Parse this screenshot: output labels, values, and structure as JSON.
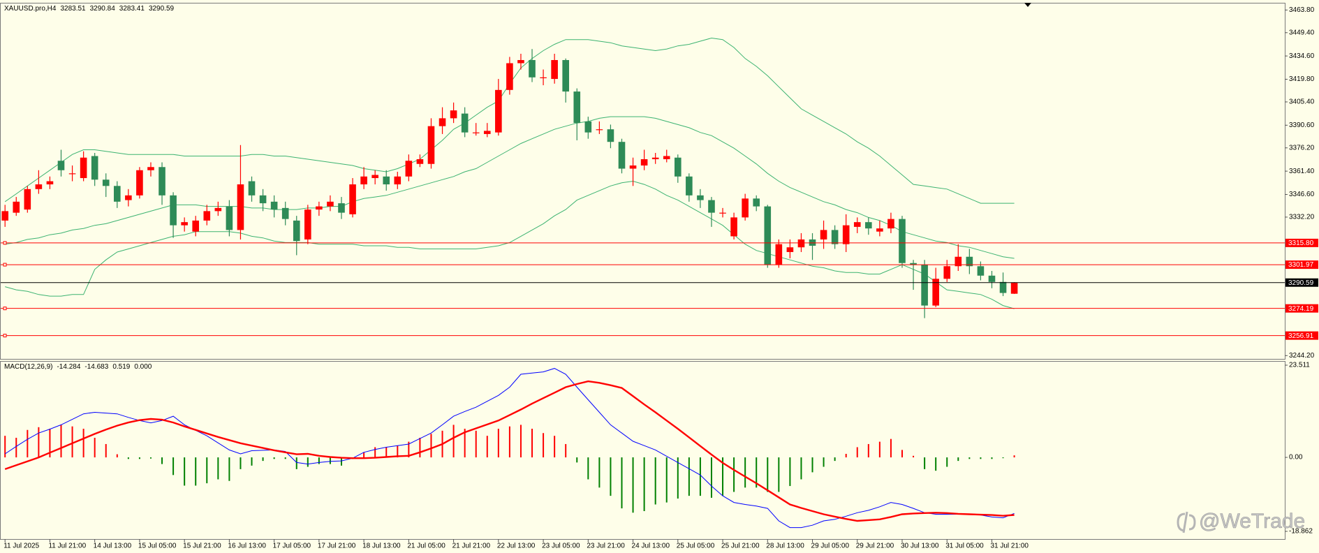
{
  "chart_data": [
    {
      "type": "candlestick",
      "title": "XAUUSD.pro,H4",
      "categories": [
        "11 Jul 2025",
        null,
        null,
        null,
        "11 Jul 21:00",
        null,
        null,
        null,
        "14 Jul 13:00",
        null,
        null,
        null,
        "15 Jul 05:00",
        null,
        null,
        null,
        "15 Jul 21:00",
        null,
        null,
        null,
        "16 Jul 13:00",
        null,
        null,
        null,
        "17 Jul 05:00",
        null,
        null,
        null,
        "17 Jul 21:00",
        null,
        null,
        null,
        "18 Jul 13:00",
        null,
        null,
        null,
        "21 Jul 05:00",
        null,
        null,
        null,
        "21 Jul 21:00",
        null,
        null,
        null,
        "22 Jul 13:00",
        null,
        null,
        null,
        "23 Jul 05:00",
        null,
        null,
        null,
        "23 Jul 21:00",
        null,
        null,
        null,
        "24 Jul 13:00",
        null,
        null,
        null,
        "25 Jul 05:00",
        null,
        null,
        null,
        "25 Jul 21:00",
        null,
        null,
        null,
        "28 Jul 13:00",
        null,
        null,
        null,
        "29 Jul 05:00",
        null,
        null,
        null,
        "29 Jul 21:00",
        null,
        null,
        null,
        "30 Jul 13:00",
        null,
        null,
        null,
        "31 Jul 05:00",
        null,
        null,
        null,
        "31 Jul 21:00",
        null,
        null
      ],
      "open": [
        3330,
        3335,
        3337,
        3350,
        3353,
        3368,
        3360,
        3357,
        3371,
        3356,
        3352,
        3343,
        3346,
        3362,
        3364,
        3346,
        3327,
        3323,
        3330,
        3336,
        3339,
        3324,
        3355,
        3346,
        3342,
        3338,
        3330,
        3318,
        3337,
        3339,
        3341,
        3334,
        3353,
        3357,
        3358,
        3353,
        3358,
        3366,
        3366,
        3390,
        3395,
        3398,
        3386,
        3385,
        3386,
        3413,
        3430,
        3432,
        3421,
        3420,
        3432,
        3412,
        3393,
        3388,
        3388,
        3380,
        3363,
        3365,
        3369,
        3369,
        3370,
        3358,
        3346,
        3343,
        3335,
        3320,
        3332,
        3344,
        3339,
        3302,
        3310,
        3313,
        3318,
        3318,
        3324,
        3315,
        3326,
        3329,
        3323,
        3325,
        3331,
        3303,
        3302,
        3276,
        3293,
        3301,
        3307,
        3301,
        3295,
        3291,
        3283.51
      ],
      "high": [
        3340,
        3345,
        3352,
        3362,
        3358,
        3375,
        3365,
        3374,
        3373,
        3360,
        3355,
        3350,
        3364,
        3367,
        3367,
        3348,
        3332,
        3333,
        3340,
        3342,
        3343,
        3378,
        3358,
        3350,
        3346,
        3342,
        3333,
        3340,
        3342,
        3346,
        3345,
        3357,
        3364,
        3362,
        3362,
        3361,
        3372,
        3372,
        3395,
        3402,
        3405,
        3402,
        3392,
        3392,
        3420,
        3434,
        3436,
        3439,
        3426,
        3436,
        3433,
        3414,
        3396,
        3393,
        3391,
        3382,
        3370,
        3375,
        3373,
        3375,
        3372,
        3360,
        3350,
        3345,
        3338,
        3335,
        3347,
        3346,
        3340,
        3318,
        3318,
        3322,
        3322,
        3330,
        3327,
        3334,
        3332,
        3332,
        3330,
        3335,
        3333,
        3305,
        3305,
        3300,
        3305,
        3315,
        3312,
        3304,
        3298,
        3297,
        3290.84
      ],
      "low": [
        3326,
        3333,
        3335,
        3347,
        3350,
        3358,
        3355,
        3355,
        3352,
        3345,
        3338,
        3339,
        3344,
        3358,
        3340,
        3319,
        3323,
        3320,
        3327,
        3333,
        3320,
        3318,
        3342,
        3336,
        3332,
        3327,
        3308,
        3315,
        3333,
        3336,
        3331,
        3332,
        3350,
        3353,
        3349,
        3350,
        3355,
        3364,
        3363,
        3385,
        3392,
        3383,
        3384,
        3383,
        3384,
        3410,
        3426,
        3418,
        3416,
        3417,
        3405,
        3381,
        3382,
        3385,
        3376,
        3360,
        3352,
        3362,
        3366,
        3367,
        3354,
        3342,
        3338,
        3326,
        3332,
        3318,
        3330,
        3336,
        3300,
        3300,
        3306,
        3310,
        3305,
        3312,
        3312,
        3310,
        3322,
        3321,
        3320,
        3322,
        3300,
        3286,
        3268,
        3275,
        3291,
        3298,
        3296,
        3292,
        3287,
        3282,
        3283.41
      ],
      "close": [
        3336,
        3342,
        3350,
        3353,
        3355,
        3362,
        3360,
        3370,
        3356,
        3352,
        3342,
        3346,
        3362,
        3364,
        3346,
        3327,
        3329,
        3330,
        3336,
        3338,
        3324,
        3353,
        3346,
        3341,
        3337,
        3331,
        3317,
        3337,
        3339,
        3342,
        3335,
        3353,
        3358,
        3359,
        3353,
        3358,
        3368,
        3369,
        3390,
        3395,
        3400,
        3386,
        3386,
        3387,
        3413,
        3430,
        3432,
        3421,
        3421,
        3432,
        3412,
        3392,
        3386,
        3388,
        3380,
        3363,
        3365,
        3369,
        3370,
        3371,
        3358,
        3346,
        3343,
        3335,
        3335,
        3332,
        3344,
        3339,
        3302,
        3315,
        3313,
        3318,
        3314,
        3324,
        3315,
        3327,
        3329,
        3325,
        3325,
        3331,
        3303,
        3302,
        3276,
        3293,
        3301,
        3307,
        3301,
        3295,
        3291,
        3284,
        3290.59
      ],
      "up_color": "#ff0000",
      "down_color": "#2e8b57",
      "overlays": [
        {
          "color": "#3cb371",
          "values": [
            3342,
            3347,
            3352,
            3357,
            3362,
            3367,
            3372,
            3375,
            3375,
            3374,
            3373,
            3372,
            3372,
            3372,
            3372,
            3372,
            3371,
            3371,
            3371,
            3371,
            3371,
            3371,
            3372,
            3372,
            3371,
            3371,
            3370,
            3369,
            3368,
            3367,
            3366,
            3365,
            3363,
            3362,
            3361,
            3363,
            3366,
            3369,
            3375,
            3381,
            3388,
            3392,
            3397,
            3402,
            3406,
            3417,
            3427,
            3433,
            3438,
            3442,
            3445,
            3445,
            3445,
            3444,
            3443,
            3441,
            3440,
            3439,
            3438,
            3439,
            3441,
            3442,
            3444,
            3446,
            3445,
            3440,
            3433,
            3428,
            3422,
            3415,
            3408,
            3401,
            3397,
            3393,
            3389,
            3385,
            3380,
            3376,
            3371,
            3365,
            3359,
            3353,
            3352,
            3351,
            3350,
            3347,
            3344,
            3341,
            3341,
            3341,
            3341
          ]
        },
        {
          "color": "#3cb371",
          "values": [
            3315,
            3316,
            3318,
            3319,
            3321,
            3322,
            3324,
            3325,
            3327,
            3328,
            3330,
            3332,
            3334,
            3336,
            3338,
            3340,
            3340,
            3340,
            3339,
            3339,
            3339,
            3339,
            3338,
            3338,
            3337,
            3337,
            3337,
            3338,
            3338,
            3339,
            3339,
            3342,
            3344,
            3345,
            3346,
            3348,
            3350,
            3352,
            3354,
            3356,
            3358,
            3361,
            3363,
            3367,
            3371,
            3375,
            3379,
            3382,
            3385,
            3388,
            3390,
            3392,
            3393,
            3395,
            3396,
            3396,
            3396,
            3396,
            3395,
            3393,
            3391,
            3389,
            3386,
            3384,
            3380,
            3376,
            3371,
            3366,
            3360,
            3355,
            3351,
            3348,
            3345,
            3342,
            3340,
            3337,
            3335,
            3332,
            3330,
            3327,
            3323,
            3321,
            3319,
            3317,
            3316,
            3314,
            3313,
            3311,
            3309,
            3307,
            3306
          ]
        },
        {
          "color": "#3cb371",
          "values": [
            3288,
            3286,
            3285,
            3283,
            3282,
            3282,
            3283,
            3283,
            3299,
            3305,
            3310,
            3312,
            3314,
            3316,
            3318,
            3320,
            3321,
            3323,
            3323,
            3323,
            3323,
            3322,
            3320,
            3319,
            3317,
            3316,
            3316,
            3316,
            3315,
            3315,
            3315,
            3315,
            3314,
            3314,
            3314,
            3313,
            3313,
            3312,
            3312,
            3312,
            3312,
            3312,
            3312,
            3313,
            3314,
            3316,
            3320,
            3324,
            3328,
            3333,
            3337,
            3343,
            3346,
            3349,
            3352,
            3354,
            3355,
            3353,
            3350,
            3346,
            3343,
            3339,
            3335,
            3331,
            3327,
            3321,
            3315,
            3311,
            3309,
            3307,
            3305,
            3303,
            3301,
            3300,
            3298,
            3297,
            3297,
            3296,
            3296,
            3299,
            3302,
            3299,
            3296,
            3291,
            3286,
            3285,
            3284,
            3283,
            3280,
            3276,
            3274
          ]
        }
      ],
      "levels": [
        {
          "value": 3315.8,
          "label": "3315.80"
        },
        {
          "value": 3301.97,
          "label": "3301.97"
        },
        {
          "value": 3274.19,
          "label": "3274.19"
        },
        {
          "value": 3256.91,
          "label": "3256.91"
        }
      ],
      "level_color": "#ff0000",
      "ylim": [
        3242.1,
        3467.5
      ],
      "yticks": [
        {
          "value": 3463.8,
          "label": "3463.80"
        },
        {
          "value": 3449.4,
          "label": "3449.40"
        },
        {
          "value": 3434.6,
          "label": "3434.60"
        },
        {
          "value": 3419.8,
          "label": "3419.80"
        },
        {
          "value": 3405.4,
          "label": "3405.40"
        },
        {
          "value": 3390.6,
          "label": "3390.60"
        },
        {
          "value": 3376.2,
          "label": "3376.20"
        },
        {
          "value": 3361.4,
          "label": "3361.40"
        },
        {
          "value": 3346.6,
          "label": "3346.60"
        },
        {
          "value": 3332.2,
          "label": "3332.20"
        },
        {
          "value": 3244.2,
          "label": "3244.20"
        }
      ],
      "grid": false
    },
    {
      "type": "macd",
      "title": "MACD(12,26,9)",
      "header_values": [
        "-14.284",
        "-14.683",
        "0.519",
        "0.000"
      ],
      "histogram": {
        "up_color": "#ff0000",
        "down_color": "#008000",
        "values": [
          5.5,
          5.0,
          7.0,
          7.7,
          7.3,
          8.3,
          7.9,
          7.3,
          5.0,
          3.4,
          0.8,
          -0.4,
          -0.4,
          -0.3,
          -1.7,
          -4.5,
          -7.2,
          -7.2,
          -6.6,
          -5.6,
          -6.0,
          -3.0,
          -2.1,
          -0.9,
          -0.4,
          -0.4,
          -3.0,
          -2.4,
          -1.7,
          -1.7,
          -2.1,
          -0.4,
          1.3,
          2.6,
          2.6,
          3.0,
          4.0,
          5.0,
          6.0,
          6.8,
          8.3,
          7.3,
          6.8,
          5.5,
          7.3,
          7.9,
          8.3,
          7.3,
          6.2,
          5.5,
          3.4,
          -1.3,
          -5.6,
          -7.7,
          -9.8,
          -13.0,
          -14.1,
          -13.7,
          -12.0,
          -11.5,
          -10.5,
          -9.8,
          -9.8,
          -10.3,
          -9.8,
          -8.8,
          -7.7,
          -7.7,
          -8.8,
          -8.8,
          -7.3,
          -5.6,
          -3.8,
          -2.4,
          -0.9,
          0.9,
          2.6,
          3.4,
          4.0,
          4.7,
          1.9,
          0.4,
          -3.0,
          -3.4,
          -2.4,
          -0.9,
          -0.4,
          -0.4,
          -0.4,
          -0.2,
          0.519
        ]
      },
      "series": [
        {
          "color": "#0000ff",
          "width": 1,
          "values": [
            0.9,
            2.8,
            4.6,
            6.2,
            7.2,
            8.3,
            9.7,
            11.1,
            11.5,
            11.3,
            11.1,
            10.2,
            9.4,
            8.8,
            9.4,
            10.5,
            8.3,
            6.9,
            5.5,
            3.7,
            1.9,
            0.9,
            1.7,
            1.8,
            1.9,
            1.5,
            -1.3,
            -1.7,
            -1.3,
            -1.0,
            -0.9,
            -0.2,
            1.3,
            2.0,
            2.6,
            3.0,
            3.4,
            4.8,
            6.2,
            8.3,
            10.5,
            11.7,
            12.8,
            14.3,
            15.8,
            17.9,
            21.2,
            21.5,
            21.8,
            22.7,
            21.2,
            17.9,
            14.7,
            11.5,
            8.3,
            6.2,
            4.1,
            3.0,
            1.9,
            0.3,
            -1.3,
            -2.9,
            -4.5,
            -7.3,
            -9.8,
            -11.5,
            -12.0,
            -12.4,
            -13.0,
            -16.2,
            -17.9,
            -17.9,
            -17.3,
            -16.2,
            -15.8,
            -15.0,
            -14.1,
            -13.5,
            -12.6,
            -11.5,
            -12.0,
            -13.0,
            -14.1,
            -14.5,
            -14.5,
            -14.5,
            -14.5,
            -14.7,
            -15.2,
            -15.4,
            -14.284
          ]
        },
        {
          "color": "#ff0000",
          "width": 2.4,
          "values": [
            -3.0,
            -2.0,
            -1.0,
            0.0,
            1.2,
            2.4,
            3.6,
            4.8,
            6.0,
            7.1,
            8.1,
            8.9,
            9.5,
            9.8,
            9.6,
            8.9,
            7.9,
            7.0,
            6.1,
            5.2,
            4.4,
            3.6,
            3.0,
            2.4,
            1.8,
            1.3,
            0.8,
            0.9,
            0.4,
            0.1,
            -0.1,
            -0.2,
            -0.2,
            -0.1,
            0.1,
            0.3,
            0.4,
            1.3,
            2.3,
            3.4,
            5.0,
            6.4,
            7.4,
            8.4,
            9.4,
            10.8,
            12.2,
            13.7,
            15.1,
            16.5,
            17.9,
            18.7,
            19.4,
            19.0,
            18.4,
            17.7,
            15.6,
            13.5,
            11.5,
            9.4,
            7.3,
            5.1,
            2.9,
            0.7,
            -1.4,
            -3.2,
            -4.9,
            -6.6,
            -8.4,
            -10.2,
            -12.0,
            -12.9,
            -13.7,
            -14.5,
            -15.1,
            -15.7,
            -16.2,
            -16.0,
            -15.8,
            -15.2,
            -14.5,
            -14.3,
            -14.2,
            -14.1,
            -14.2,
            -14.4,
            -14.5,
            -14.6,
            -14.7,
            -14.9,
            -14.683
          ]
        }
      ],
      "ylim": [
        -18.862,
        23.511
      ],
      "yticks": [
        23.511,
        {
          "value": 0,
          "label": "0.00"
        },
        -18.862
      ]
    }
  ],
  "watermark": "@WeTrade"
}
